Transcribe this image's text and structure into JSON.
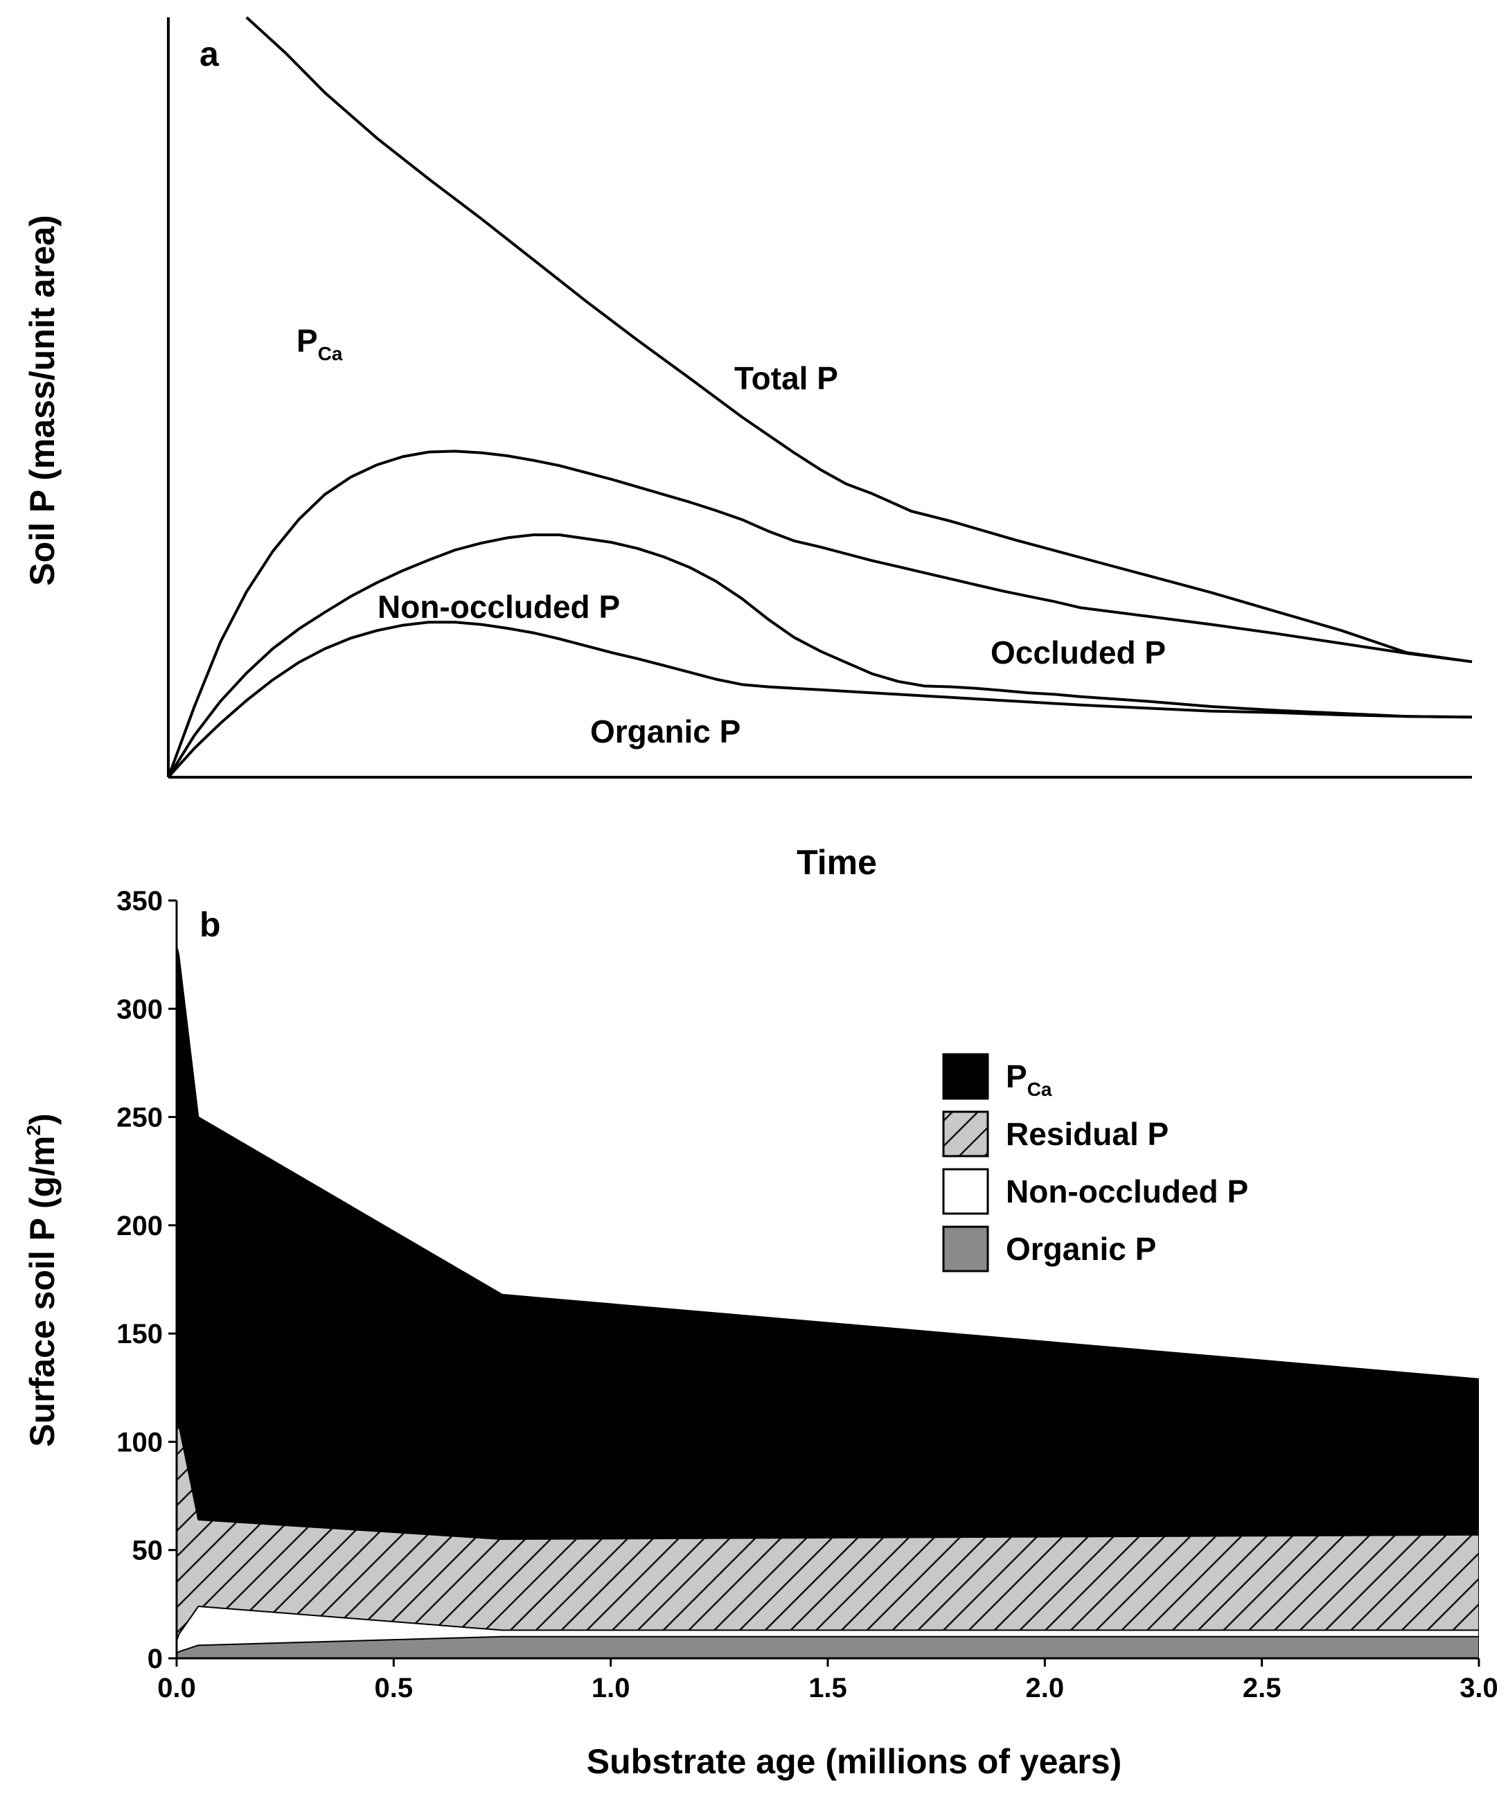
{
  "chart_data": [
    {
      "type": "line",
      "panel_label": "a",
      "xlabel": "Time",
      "ylabel": "Soil P (mass/unit area)",
      "x_ticks": "none",
      "y_ticks": "none",
      "x_range": [
        0,
        100
      ],
      "y_range": [
        0,
        100
      ],
      "series": [
        {
          "name": "Total P",
          "x": [
            6,
            9,
            12,
            16,
            20,
            24,
            28,
            32,
            36,
            40,
            44,
            48,
            50,
            52,
            54,
            57,
            60,
            65,
            70,
            75,
            80,
            85,
            90,
            95,
            100
          ],
          "y": [
            100,
            95.3,
            90.1,
            84.1,
            78.7,
            73.5,
            68.1,
            62.7,
            57.5,
            52.5,
            47.4,
            42.7,
            40.5,
            38.6,
            37.3,
            35,
            33.7,
            31.2,
            28.9,
            26.6,
            24.3,
            21.8,
            19.3,
            16.4,
            15.2
          ]
        },
        {
          "name": "Non-occluded + Organic P boundary",
          "x": [
            0,
            2,
            4,
            6,
            8,
            10,
            12,
            14,
            16,
            18,
            20,
            22,
            24,
            26,
            28,
            30,
            32,
            34,
            36,
            38,
            40,
            42,
            44,
            46,
            48,
            50,
            52,
            54,
            56,
            58,
            60,
            62,
            64,
            66,
            68,
            70,
            75,
            80,
            85,
            90,
            95,
            100
          ],
          "y": [
            0,
            5.5,
            10,
            13.7,
            16.9,
            19.5,
            21.7,
            23.8,
            25.6,
            27.2,
            28.6,
            29.9,
            30.8,
            31.5,
            31.9,
            31.9,
            31.4,
            30.9,
            30.1,
            29,
            27.6,
            25.8,
            23.5,
            20.8,
            18.4,
            16.6,
            15.1,
            13.6,
            12.6,
            12,
            11.9,
            11.7,
            11.4,
            11.1,
            10.9,
            10.6,
            10,
            9.3,
            8.8,
            8.4,
            8,
            7.9
          ]
        },
        {
          "name": "Occluded P boundary",
          "x": [
            0,
            2,
            4,
            6,
            8,
            10,
            12,
            14,
            16,
            18,
            20,
            22,
            24,
            26,
            28,
            30,
            32,
            34,
            36,
            38,
            40,
            42,
            44,
            46,
            48,
            50,
            52,
            54,
            56,
            58,
            60,
            62,
            64,
            66,
            68,
            70,
            75,
            80,
            85,
            90,
            95,
            100
          ],
          "y": [
            0,
            9.3,
            17.8,
            24.4,
            29.7,
            33.9,
            37.2,
            39.5,
            41.1,
            42.2,
            42.8,
            42.9,
            42.7,
            42.3,
            41.7,
            41,
            40.1,
            39.2,
            38.2,
            37.2,
            36.2,
            35.1,
            33.9,
            32.4,
            31.1,
            30.3,
            29.4,
            28.5,
            27.7,
            26.9,
            26.1,
            25.3,
            24.5,
            23.8,
            23.1,
            22.3,
            21.2,
            20.1,
            18.9,
            17.6,
            16.3,
            15.2
          ]
        },
        {
          "name": "Organic P boundary",
          "x": [
            0,
            2,
            4,
            6,
            8,
            10,
            12,
            14,
            16,
            18,
            20,
            22,
            24,
            26,
            28,
            30,
            32,
            34,
            36,
            38,
            40,
            42,
            44,
            46,
            48,
            50,
            52,
            54,
            56,
            58,
            60,
            62,
            64,
            66,
            68,
            70,
            75,
            80,
            85,
            90,
            95,
            100
          ],
          "y": [
            0,
            3.8,
            7.1,
            10.1,
            12.8,
            15.1,
            16.9,
            18.3,
            19.3,
            20.0,
            20.4,
            20.4,
            20.1,
            19.6,
            19,
            18.2,
            17.3,
            16.4,
            15.6,
            14.7,
            13.8,
            12.9,
            12.2,
            11.9,
            11.7,
            11.5,
            11.3,
            11.1,
            10.9,
            10.7,
            10.5,
            10.3,
            10.1,
            9.9,
            9.7,
            9.5,
            9.1,
            8.7,
            8.5,
            8.2,
            8,
            7.9
          ]
        }
      ],
      "annotations": [
        {
          "text": "P",
          "subscript": "Ca",
          "near": "upper-left"
        },
        {
          "text": "Total P",
          "near": "center"
        },
        {
          "text": "Non-occluded P",
          "near": "left-center"
        },
        {
          "text": "Occluded P",
          "near": "right"
        },
        {
          "text": "Organic P",
          "near": "bottom-center"
        }
      ]
    },
    {
      "type": "area",
      "stacked": true,
      "panel_label": "b",
      "xlabel": "Substrate age (millions of years)",
      "ylabel": "Surface soil P (g/m²)",
      "ylabel_parts": {
        "base": "Surface soil P (g/m",
        "sup": "2",
        "close": ")"
      },
      "xlim": [
        0,
        3
      ],
      "ylim": [
        0,
        350
      ],
      "x_ticks": [
        "0.0",
        "0.5",
        "1.0",
        "1.5",
        "2.0",
        "2.5",
        "3.0"
      ],
      "y_ticks": [
        "0",
        "50",
        "100",
        "150",
        "200",
        "250",
        "300",
        "350"
      ],
      "legend_position": "top-right",
      "x": [
        0,
        0.005,
        0.05,
        0.75,
        3.0
      ],
      "series": [
        {
          "name": "Organic P",
          "subscript": "",
          "color": "#8a8a8a",
          "pattern": "solid",
          "top": [
            2,
            3,
            6,
            10,
            10
          ]
        },
        {
          "name": "Non-occluded P",
          "subscript": "",
          "color": "#ffffff",
          "pattern": "solid",
          "top": [
            8,
            11,
            24,
            13,
            13
          ]
        },
        {
          "name": "Residual P",
          "subscript": "",
          "color": "#c8c8c8",
          "pattern": "hatch",
          "top": [
            105,
            108,
            64,
            55,
            57
          ]
        },
        {
          "name": "P",
          "subscript": "Ca",
          "color": "#000000",
          "pattern": "solid",
          "top": [
            329,
            325,
            250,
            168,
            129
          ]
        }
      ]
    }
  ]
}
